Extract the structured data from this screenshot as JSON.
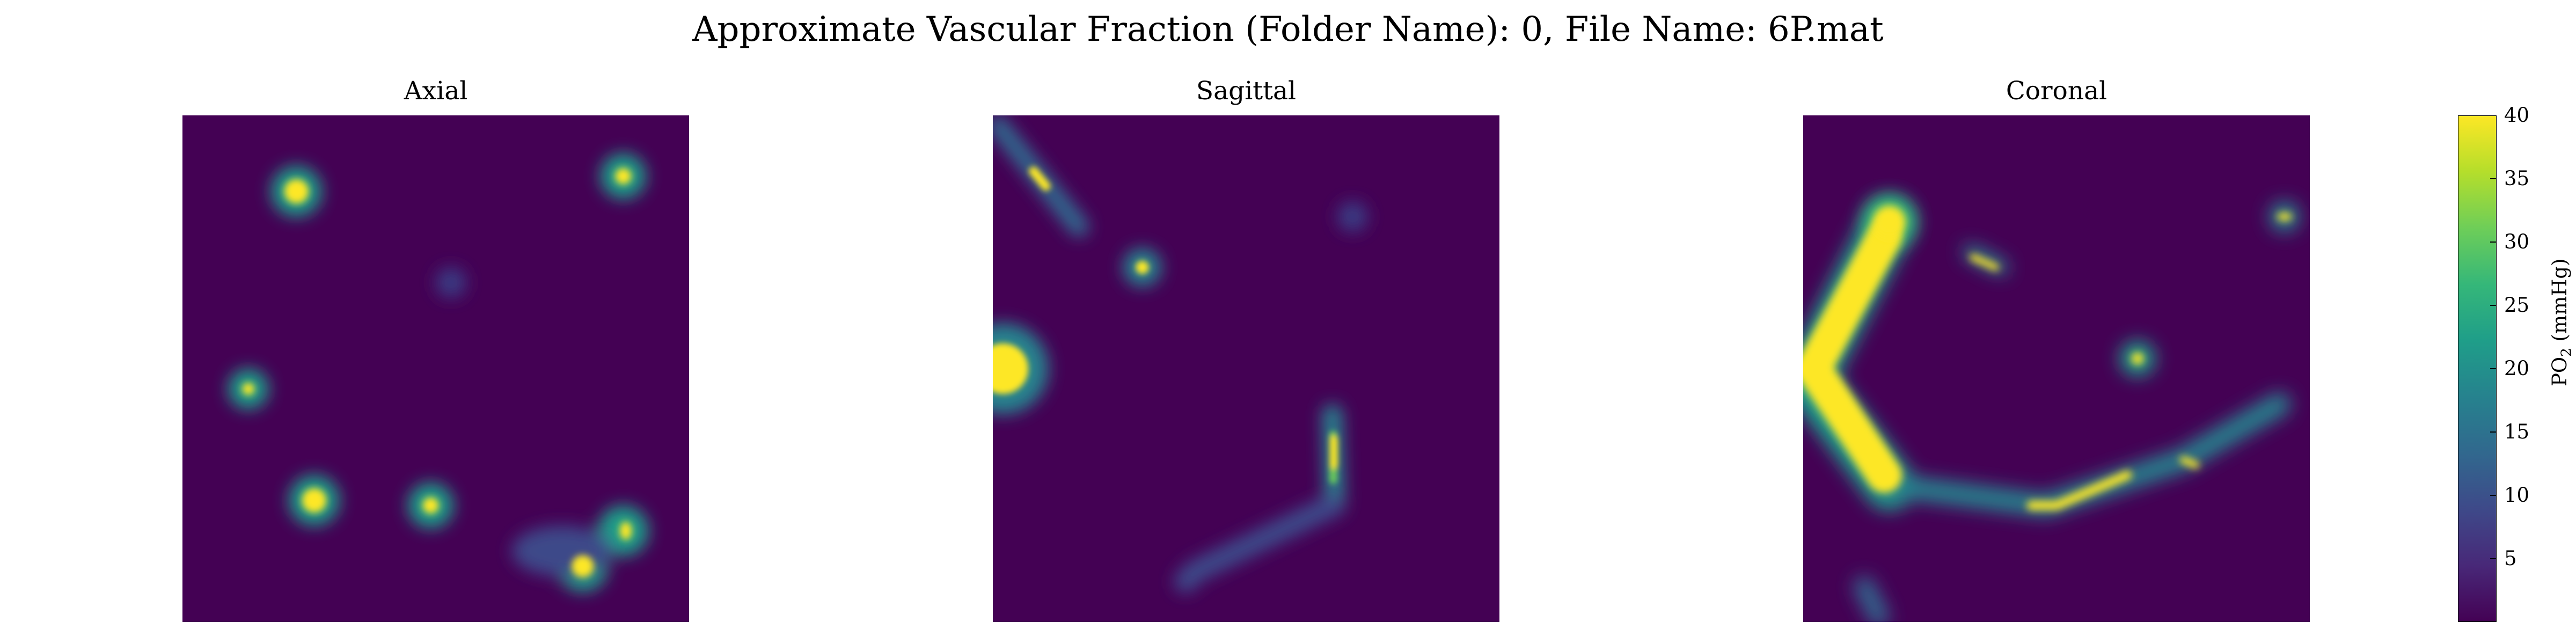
{
  "suptitle": "Approximate Vascular Fraction (Folder Name): 0, File Name: 6P.mat",
  "panels": [
    {
      "title": "Axial"
    },
    {
      "title": "Sagittal"
    },
    {
      "title": "Coronal"
    }
  ],
  "colorbar": {
    "label_main": "PO",
    "label_sub": "2",
    "label_unit": "(mmHg)",
    "ticks": [
      "5",
      "10",
      "15",
      "20",
      "25",
      "30",
      "35",
      "40"
    ],
    "range": [
      0,
      40
    ],
    "colormap": "viridis",
    "colors": [
      "#440154",
      "#482878",
      "#3e4989",
      "#31688e",
      "#26828e",
      "#1f9e89",
      "#35b779",
      "#6ece58",
      "#b5de2b",
      "#fde725"
    ]
  },
  "chart_data": {
    "type": "heatmap",
    "title": "Approximate Vascular Fraction (Folder Name): 0, File Name: 6P.mat",
    "colormap": "viridis",
    "vmin": 0,
    "vmax": 40,
    "colorbar_label": "PO2 (mmHg)",
    "series": [
      {
        "name": "Axial"
      },
      {
        "name": "Sagittal"
      },
      {
        "name": "Coronal"
      }
    ]
  }
}
